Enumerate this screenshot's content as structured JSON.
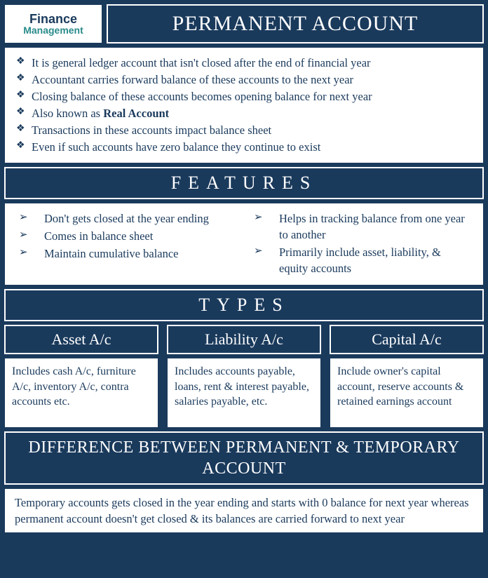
{
  "colors": {
    "primary": "#1a3a5c",
    "white": "#ffffff",
    "teal": "#2a8b8b"
  },
  "logo": {
    "line1": "Finance",
    "line2": "Management"
  },
  "title": "PERMANENT ACCOUNT",
  "intro": [
    "It is general ledger account that isn't closed after the end of financial year",
    "Accountant carries forward balance of these accounts to the next year",
    "Closing balance of these accounts becomes opening balance for next year",
    "Also known as <b>Real Account</b>",
    "Transactions in these accounts impact balance sheet",
    "Even if such accounts have zero balance they continue to exist"
  ],
  "features_header": "FEATURES",
  "features_left": [
    "Don't gets closed at the year ending",
    "Comes in balance sheet",
    "Maintain cumulative balance"
  ],
  "features_right": [
    "Helps in tracking balance from one year to another",
    "Primarily include asset, liability, & equity accounts"
  ],
  "types_header": "TYPES",
  "types": [
    {
      "title": "Asset A/c",
      "desc": "Includes cash A/c, furniture A/c, inventory A/c, contra accounts etc."
    },
    {
      "title": "Liability A/c",
      "desc": "Includes accounts payable, loans, rent & interest payable, salaries payable, etc."
    },
    {
      "title": "Capital A/c",
      "desc": "Include owner's capital account, reserve accounts & retained earnings account"
    }
  ],
  "diff_header": "DIFFERENCE BETWEEN PERMANENT & TEMPORARY ACCOUNT",
  "diff_text": "Temporary accounts gets closed in the year ending and starts with 0 balance for next year whereas permanent account doesn't get closed & its balances are carried forward to next year",
  "typography": {
    "title_fontsize": 30,
    "section_header_fontsize": 26,
    "section_header_letterspacing": 10,
    "body_fontsize": 16.5,
    "type_title_fontsize": 22,
    "diff_header_fontsize": 24,
    "font_family": "Garamond/serif"
  },
  "bullets": {
    "intro": "❖",
    "features": "➢"
  }
}
